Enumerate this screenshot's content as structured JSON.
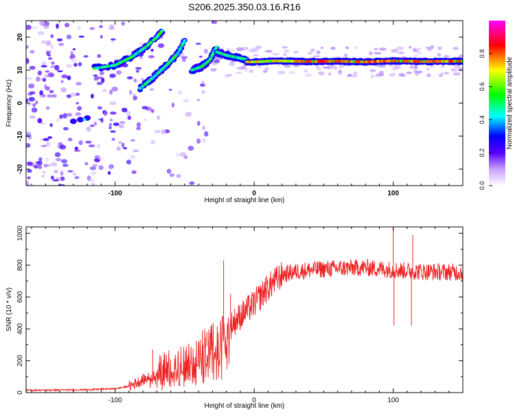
{
  "figure": {
    "title": "S206.2025.350.03.16.R16"
  },
  "chart_data": [
    {
      "type": "heatmap",
      "xlabel": "Height of straight line (km)",
      "ylabel": "Frequency (Hz)",
      "xlim": [
        -164,
        150
      ],
      "ylim": [
        -25,
        25
      ],
      "x_ticks": [
        -100,
        0,
        100
      ],
      "y_ticks": [
        -20,
        -10,
        0,
        10,
        20
      ],
      "grid": false,
      "colorbar": {
        "label": "Normalized spectral amplitude",
        "range": [
          0,
          1
        ],
        "ticks": [
          0.0,
          0.2,
          0.4,
          0.6,
          0.8
        ],
        "tick_labels": [
          "0.0",
          "0.2",
          "0.4",
          "0.6",
          "0.8"
        ]
      },
      "ridges": [
        {
          "x": [
            -115,
            -100,
            -88,
            -78,
            -70,
            -66
          ],
          "y": [
            10.5,
            11.5,
            14,
            17,
            20,
            22
          ]
        },
        {
          "x": [
            -82,
            -72,
            -63,
            -55,
            -50
          ],
          "y": [
            4.5,
            8,
            11.5,
            15,
            19
          ]
        },
        {
          "x": [
            -45,
            -38,
            -32,
            -27
          ],
          "y": [
            10,
            11,
            13,
            17
          ]
        },
        {
          "x": [
            -27,
            -20,
            -12,
            -5
          ],
          "y": [
            15.5,
            14.5,
            13.8,
            13.2
          ]
        },
        {
          "x": [
            -5,
            0,
            15,
            40,
            60,
            80,
            100,
            120,
            150
          ],
          "y": [
            12.5,
            12.5,
            12.8,
            12.6,
            12.7,
            12.5,
            12.8,
            12.6,
            12.7
          ]
        }
      ]
    },
    {
      "type": "line",
      "xlabel": "Height of straight line (km)",
      "ylabel": "SNR (10 * v/v)",
      "xlim": [
        -164,
        150
      ],
      "ylim": [
        0,
        1040
      ],
      "x_ticks": [
        -100,
        0,
        100
      ],
      "y_ticks": [
        0,
        200,
        400,
        600,
        800,
        1000
      ],
      "color": "#ee2222",
      "grid": false,
      "envelope": {
        "x": [
          -164,
          -120,
          -100,
          -90,
          -80,
          -70,
          -60,
          -50,
          -40,
          -30,
          -25,
          -20,
          -15,
          -10,
          0,
          10,
          20,
          30,
          40,
          60,
          80,
          100,
          120,
          150
        ],
        "y": [
          15,
          18,
          25,
          40,
          80,
          110,
          140,
          180,
          250,
          320,
          330,
          380,
          440,
          480,
          560,
          660,
          740,
          760,
          770,
          780,
          785,
          770,
          760,
          755
        ]
      },
      "spikes": [
        {
          "x": -73,
          "y": 270
        },
        {
          "x": -34,
          "y": 380
        },
        {
          "x": -22,
          "y": 830
        },
        {
          "x": -17,
          "y": 620
        },
        {
          "x": 8,
          "y": 720
        },
        {
          "x": 100,
          "y": 1040
        },
        {
          "x": 100.5,
          "y": 420
        },
        {
          "x": 114,
          "y": 990
        },
        {
          "x": 113,
          "y": 420
        }
      ]
    }
  ]
}
